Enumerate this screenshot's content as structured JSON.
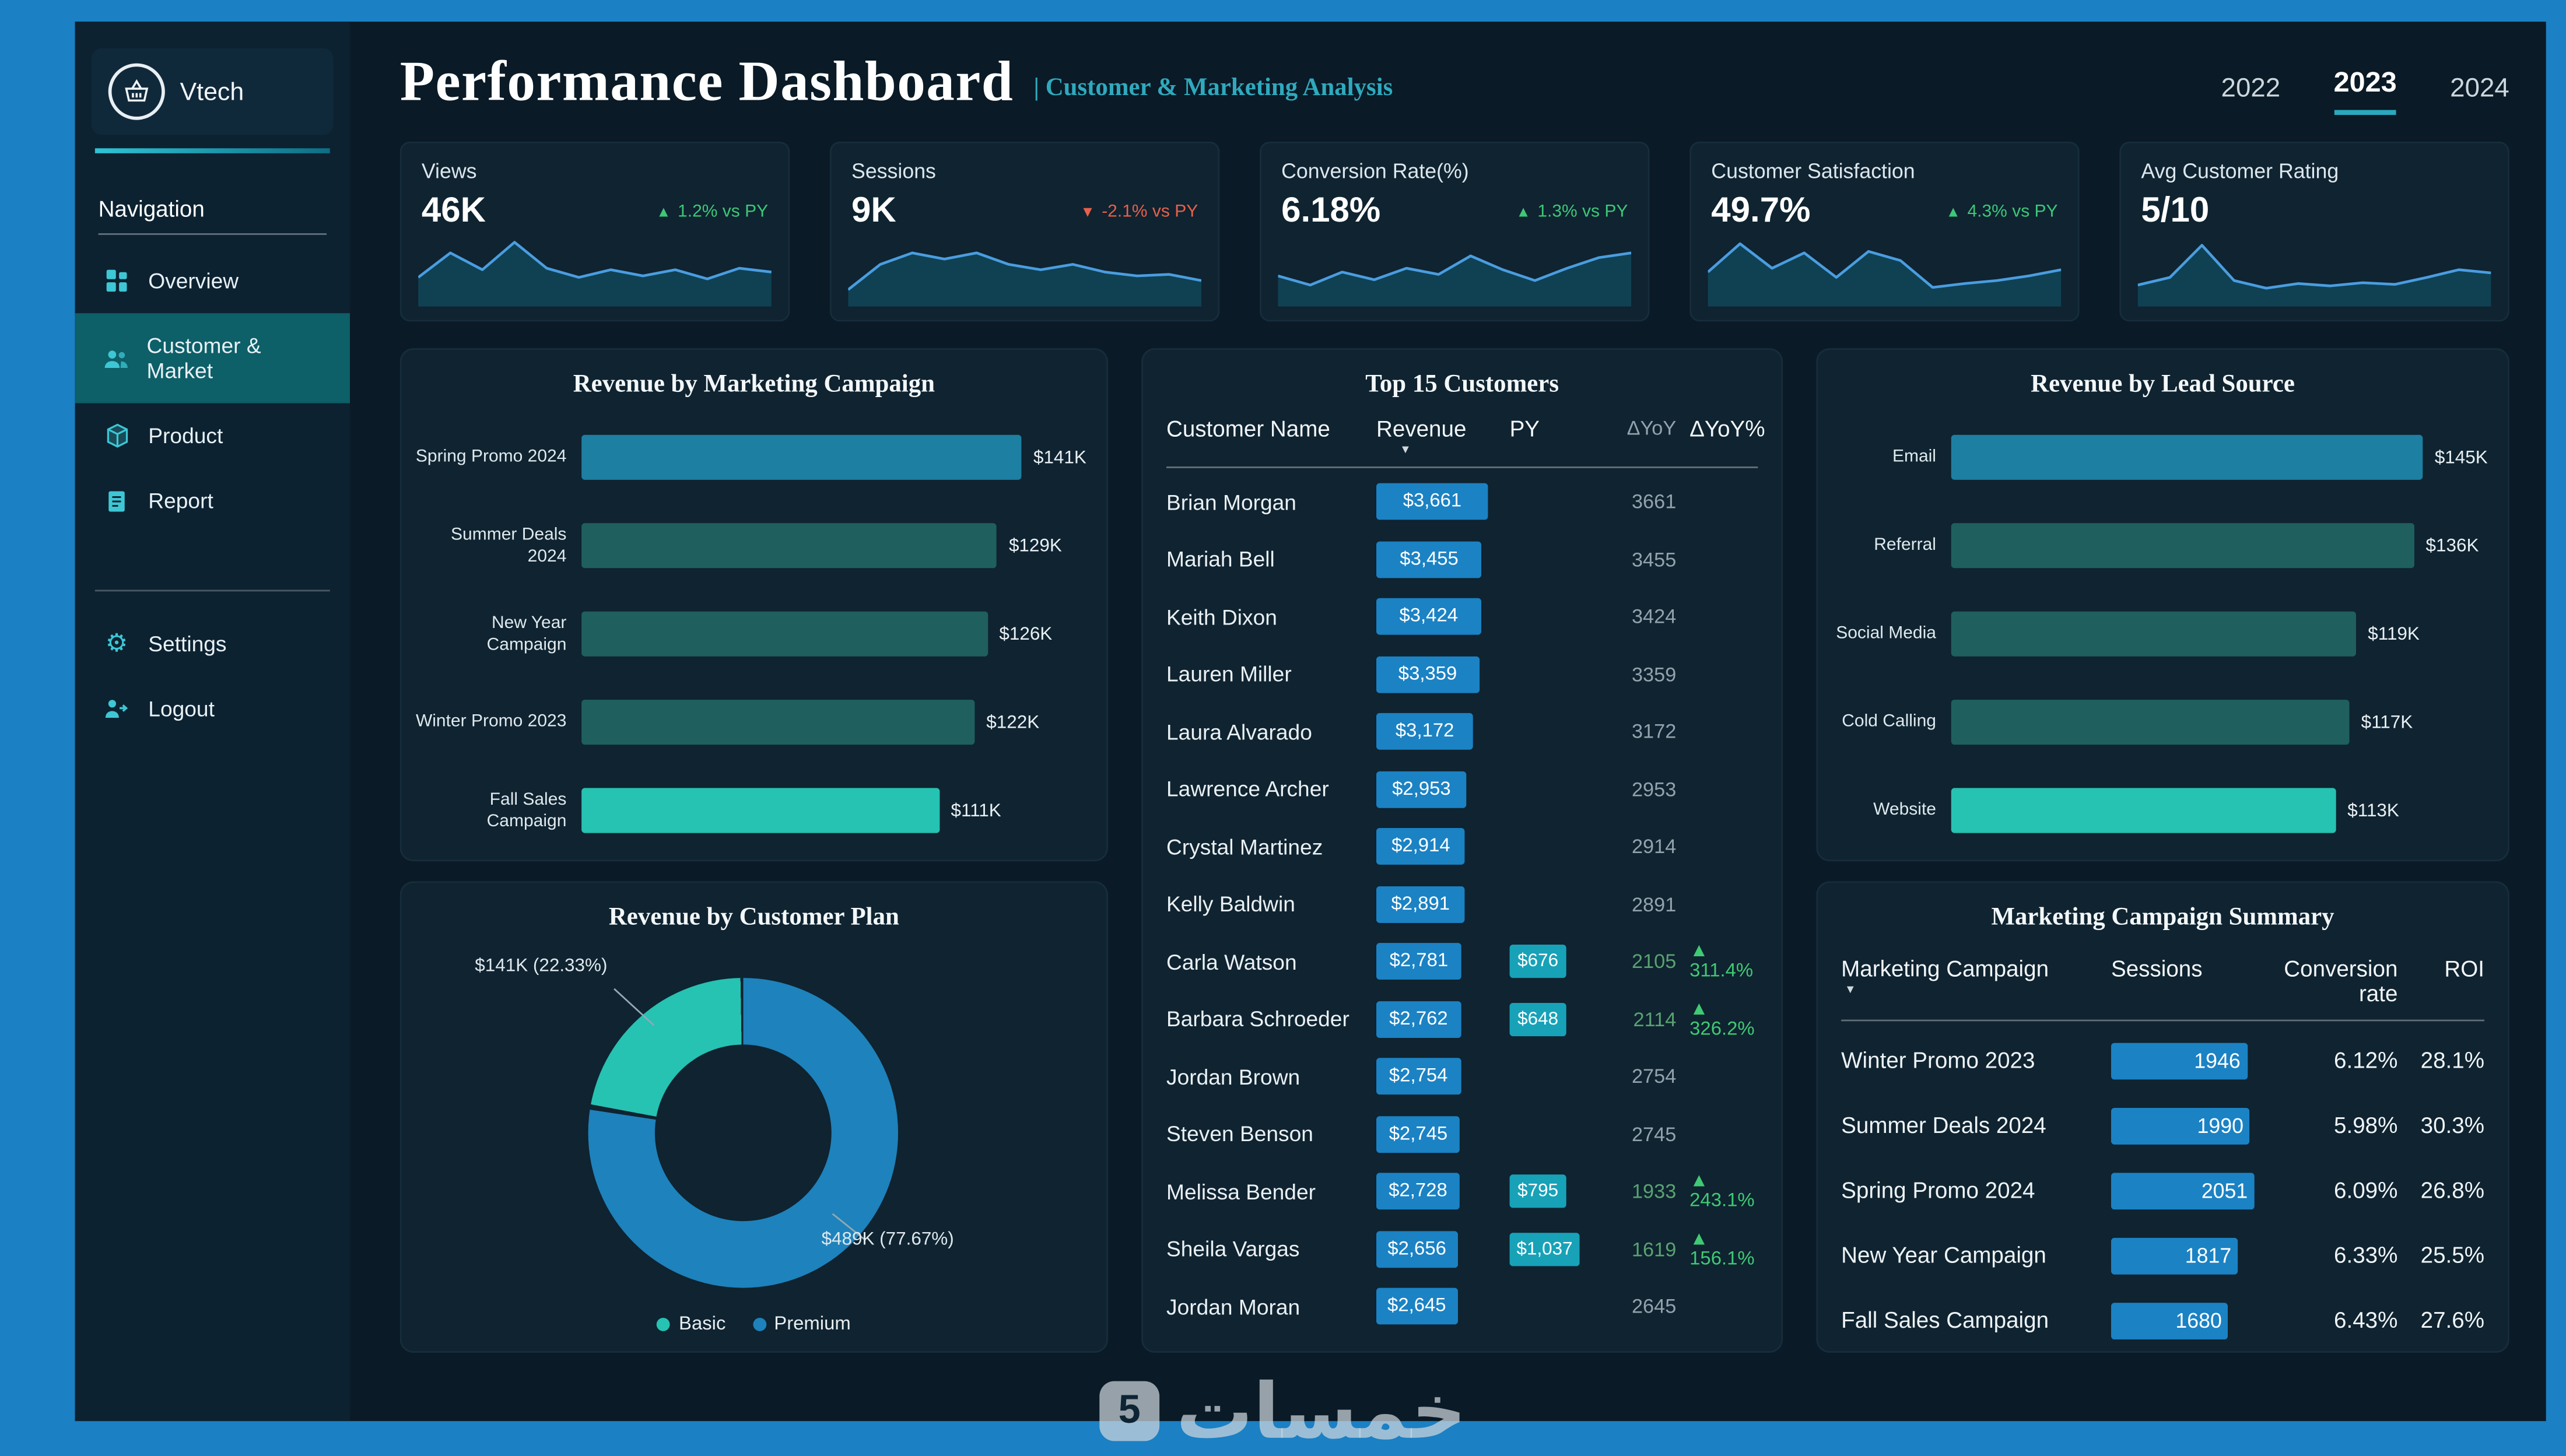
{
  "brand": {
    "name": "Vtech"
  },
  "sidebar": {
    "nav_heading": "Navigation",
    "items": [
      {
        "label": "Overview",
        "icon": "grid-icon",
        "active": false
      },
      {
        "label": "Customer & Market",
        "icon": "people-icon",
        "active": true
      },
      {
        "label": "Product",
        "icon": "box-icon",
        "active": false
      },
      {
        "label": "Report",
        "icon": "report-icon",
        "active": false
      }
    ],
    "footer_items": [
      {
        "label": "Settings",
        "icon": "gear-icon",
        "active": false
      },
      {
        "label": "Logout",
        "icon": "logout-icon",
        "active": false
      }
    ]
  },
  "header": {
    "title": "Performance Dashboard",
    "subtitle": "| Customer & Marketing Analysis",
    "year_tabs": [
      {
        "label": "2022",
        "active": false
      },
      {
        "label": "2023",
        "active": true
      },
      {
        "label": "2024",
        "active": false
      }
    ]
  },
  "kpis": [
    {
      "label": "Views",
      "value": "46K",
      "delta": "1.2% vs PY",
      "direction": "up",
      "spark": [
        0.62,
        0.3,
        0.52,
        0.16,
        0.5,
        0.62,
        0.52,
        0.6,
        0.52,
        0.64,
        0.5,
        0.55
      ]
    },
    {
      "label": "Sessions",
      "value": "9K",
      "delta": "-2.1% vs PY",
      "direction": "down",
      "spark": [
        0.78,
        0.45,
        0.3,
        0.38,
        0.3,
        0.45,
        0.52,
        0.45,
        0.55,
        0.6,
        0.58,
        0.66
      ]
    },
    {
      "label": "Conversion Rate(%)",
      "value": "6.18%",
      "delta": "1.3% vs PY",
      "direction": "up",
      "spark": [
        0.6,
        0.72,
        0.55,
        0.65,
        0.5,
        0.58,
        0.34,
        0.52,
        0.66,
        0.5,
        0.36,
        0.3
      ]
    },
    {
      "label": "Customer Satisfaction",
      "value": "49.7%",
      "delta": "4.3% vs PY",
      "direction": "up",
      "spark": [
        0.55,
        0.18,
        0.5,
        0.3,
        0.62,
        0.28,
        0.4,
        0.75,
        0.7,
        0.66,
        0.6,
        0.52
      ]
    },
    {
      "label": "Avg Customer Rating",
      "value": "5/10",
      "delta": "",
      "direction": "none",
      "spark": [
        0.72,
        0.62,
        0.2,
        0.66,
        0.76,
        0.7,
        0.73,
        0.69,
        0.71,
        0.62,
        0.52,
        0.56
      ]
    }
  ],
  "campaign_chart": {
    "title": "Revenue by Marketing Campaign",
    "type": "bar",
    "bars": [
      {
        "label": "Spring Promo 2024",
        "value": 141,
        "value_label": "$141K",
        "color": "#1d7fa2"
      },
      {
        "label": "Summer Deals 2024",
        "value": 129,
        "value_label": "$129K",
        "color": "#1f5f5e"
      },
      {
        "label": "New Year Campaign",
        "value": 126,
        "value_label": "$126K",
        "color": "#1f5f5e"
      },
      {
        "label": "Winter Promo 2023",
        "value": 122,
        "value_label": "$122K",
        "color": "#1f5f5e"
      },
      {
        "label": "Fall Sales Campaign",
        "value": 111,
        "value_label": "$111K",
        "color": "#26c2b2"
      }
    ]
  },
  "plan_chart": {
    "title": "Revenue by Customer Plan",
    "type": "pie",
    "slices": [
      {
        "label": "Basic",
        "pct": 22.33,
        "value_label": "$141K (22.33%)",
        "color": "#26c2b2"
      },
      {
        "label": "Premium",
        "pct": 77.67,
        "value_label": "$489K (77.67%)",
        "color": "#1e82bc"
      }
    ]
  },
  "customers_table": {
    "title": "Top 15 Customers",
    "columns": [
      "Customer Name",
      "Revenue",
      "PY",
      "ΔYoY",
      "ΔYoY%"
    ],
    "sort_indicator": "▼",
    "rows": [
      {
        "name": "Brian Morgan",
        "revenue_label": "$3,661",
        "revenue": 3661,
        "py_label": "",
        "py": 0,
        "yoy": "3661",
        "yoy_pct": "",
        "yoy_up": false
      },
      {
        "name": "Mariah Bell",
        "revenue_label": "$3,455",
        "revenue": 3455,
        "py_label": "",
        "py": 0,
        "yoy": "3455",
        "yoy_pct": "",
        "yoy_up": false
      },
      {
        "name": "Keith Dixon",
        "revenue_label": "$3,424",
        "revenue": 3424,
        "py_label": "",
        "py": 0,
        "yoy": "3424",
        "yoy_pct": "",
        "yoy_up": false
      },
      {
        "name": "Lauren Miller",
        "revenue_label": "$3,359",
        "revenue": 3359,
        "py_label": "",
        "py": 0,
        "yoy": "3359",
        "yoy_pct": "",
        "yoy_up": false
      },
      {
        "name": "Laura Alvarado",
        "revenue_label": "$3,172",
        "revenue": 3172,
        "py_label": "",
        "py": 0,
        "yoy": "3172",
        "yoy_pct": "",
        "yoy_up": false
      },
      {
        "name": "Lawrence Archer",
        "revenue_label": "$2,953",
        "revenue": 2953,
        "py_label": "",
        "py": 0,
        "yoy": "2953",
        "yoy_pct": "",
        "yoy_up": false
      },
      {
        "name": "Crystal Martinez",
        "revenue_label": "$2,914",
        "revenue": 2914,
        "py_label": "",
        "py": 0,
        "yoy": "2914",
        "yoy_pct": "",
        "yoy_up": false
      },
      {
        "name": "Kelly Baldwin",
        "revenue_label": "$2,891",
        "revenue": 2891,
        "py_label": "",
        "py": 0,
        "yoy": "2891",
        "yoy_pct": "",
        "yoy_up": false
      },
      {
        "name": "Carla Watson",
        "revenue_label": "$2,781",
        "revenue": 2781,
        "py_label": "$676",
        "py": 676,
        "yoy": "2105",
        "yoy_pct": "311.4%",
        "yoy_up": true
      },
      {
        "name": "Barbara Schroeder",
        "revenue_label": "$2,762",
        "revenue": 2762,
        "py_label": "$648",
        "py": 648,
        "yoy": "2114",
        "yoy_pct": "326.2%",
        "yoy_up": true
      },
      {
        "name": "Jordan Brown",
        "revenue_label": "$2,754",
        "revenue": 2754,
        "py_label": "",
        "py": 0,
        "yoy": "2754",
        "yoy_pct": "",
        "yoy_up": false
      },
      {
        "name": "Steven Benson",
        "revenue_label": "$2,745",
        "revenue": 2745,
        "py_label": "",
        "py": 0,
        "yoy": "2745",
        "yoy_pct": "",
        "yoy_up": false
      },
      {
        "name": "Melissa Bender",
        "revenue_label": "$2,728",
        "revenue": 2728,
        "py_label": "$795",
        "py": 795,
        "yoy": "1933",
        "yoy_pct": "243.1%",
        "yoy_up": true
      },
      {
        "name": "Sheila Vargas",
        "revenue_label": "$2,656",
        "revenue": 2656,
        "py_label": "$1,037",
        "py": 1037,
        "yoy": "1619",
        "yoy_pct": "156.1%",
        "yoy_up": true
      },
      {
        "name": "Jordan Moran",
        "revenue_label": "$2,645",
        "revenue": 2645,
        "py_label": "",
        "py": 0,
        "yoy": "2645",
        "yoy_pct": "",
        "yoy_up": false
      }
    ]
  },
  "lead_chart": {
    "title": "Revenue by Lead Source",
    "type": "bar",
    "bars": [
      {
        "label": "Email",
        "value": 145,
        "value_label": "$145K",
        "color": "#1d7fa2"
      },
      {
        "label": "Referral",
        "value": 136,
        "value_label": "$136K",
        "color": "#1f5f5e"
      },
      {
        "label": "Social Media",
        "value": 119,
        "value_label": "$119K",
        "color": "#1f5f5e"
      },
      {
        "label": "Cold Calling",
        "value": 117,
        "value_label": "$117K",
        "color": "#1f5f5e"
      },
      {
        "label": "Website",
        "value": 113,
        "value_label": "$113K",
        "color": "#26c2b2"
      }
    ]
  },
  "summary_table": {
    "title": "Marketing Campaign Summary",
    "columns": [
      "Marketing Campaign",
      "Sessions",
      "Conversion rate",
      "ROI"
    ],
    "sort_indicator": "▼",
    "rows": [
      {
        "campaign": "Winter Promo 2023",
        "sessions": 1946,
        "conversion": "6.12%",
        "roi": "28.1%"
      },
      {
        "campaign": "Summer Deals 2024",
        "sessions": 1990,
        "conversion": "5.98%",
        "roi": "30.3%"
      },
      {
        "campaign": "Spring Promo 2024",
        "sessions": 2051,
        "conversion": "6.09%",
        "roi": "26.8%"
      },
      {
        "campaign": "New Year Campaign",
        "sessions": 1817,
        "conversion": "6.33%",
        "roi": "25.5%"
      },
      {
        "campaign": "Fall Sales Campaign",
        "sessions": 1680,
        "conversion": "6.43%",
        "roi": "27.6%"
      }
    ]
  },
  "watermark": {
    "text": "خمسات",
    "badge": "5"
  },
  "colors": {
    "frame": "#1b80c4",
    "accent_teal": "#2aa9bd",
    "bar_blue": "#1b82c4",
    "bar_teal": "#17a2b8",
    "bar_dark_teal": "#1f5f5e",
    "bar_turquoise": "#26c2b2",
    "positive": "#3dc878",
    "negative": "#e8604b"
  }
}
